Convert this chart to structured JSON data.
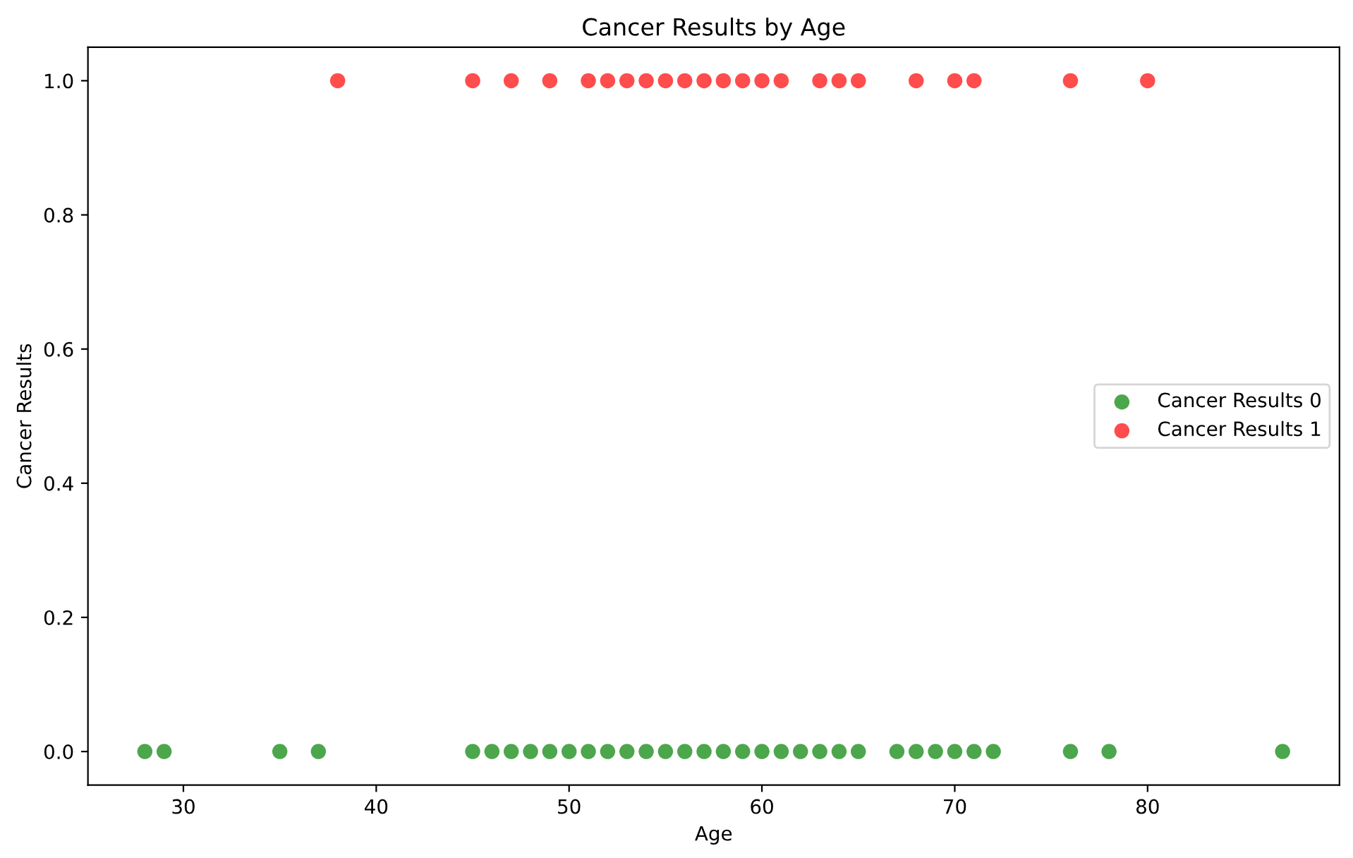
{
  "chart_data": {
    "type": "scatter",
    "title": "Cancer Results by Age",
    "xlabel": "Age",
    "ylabel": "Cancer Results",
    "series": [
      {
        "name": "Cancer Results 0",
        "color": "#008000",
        "x": [
          28,
          29,
          35,
          37,
          45,
          46,
          47,
          48,
          49,
          50,
          51,
          52,
          53,
          54,
          55,
          56,
          57,
          58,
          59,
          60,
          61,
          62,
          63,
          64,
          65,
          67,
          68,
          69,
          70,
          71,
          72,
          76,
          78,
          87
        ],
        "values": [
          0,
          0,
          0,
          0,
          0,
          0,
          0,
          0,
          0,
          0,
          0,
          0,
          0,
          0,
          0,
          0,
          0,
          0,
          0,
          0,
          0,
          0,
          0,
          0,
          0,
          0,
          0,
          0,
          0,
          0,
          0,
          0,
          0,
          0
        ]
      },
      {
        "name": "Cancer Results 1",
        "color": "#ff0000",
        "x": [
          38,
          45,
          47,
          49,
          51,
          52,
          53,
          54,
          55,
          56,
          57,
          58,
          59,
          60,
          61,
          63,
          64,
          65,
          68,
          70,
          71,
          76,
          80
        ],
        "values": [
          1,
          1,
          1,
          1,
          1,
          1,
          1,
          1,
          1,
          1,
          1,
          1,
          1,
          1,
          1,
          1,
          1,
          1,
          1,
          1,
          1,
          1,
          1
        ]
      }
    ],
    "xlim": [
      25.05,
      89.95
    ],
    "xticks": [
      30,
      40,
      50,
      60,
      70,
      80
    ],
    "ylim": [
      -0.05,
      1.05
    ],
    "yticks": [
      {
        "value": 0,
        "label": "0.0"
      },
      0.2,
      0.4,
      0.6,
      0.8,
      {
        "value": 1,
        "label": "1.0"
      }
    ],
    "legend": "center right",
    "marker": "circle",
    "grid": false
  }
}
